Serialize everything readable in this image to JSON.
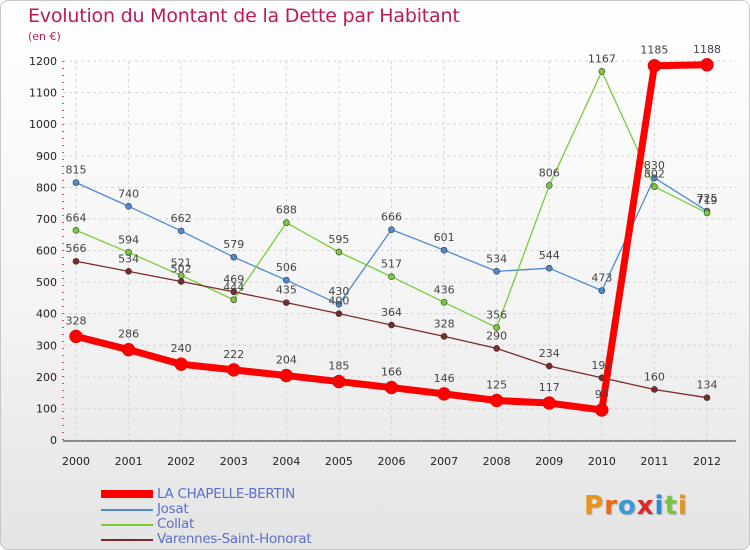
{
  "title": "Evolution du Montant de la Dette par Habitant",
  "unit_label": "(en €)",
  "logo": {
    "text": "Proxiti",
    "letters": [
      "P",
      "r",
      "o",
      "x",
      "i",
      "t",
      "i"
    ],
    "colors": [
      "#e8941a",
      "#e86a1a",
      "#3a9ad8",
      "#d82a2a",
      "#2a8ad8",
      "#7ac242",
      "#e8941a"
    ]
  },
  "chart_data": {
    "type": "line",
    "title": "Evolution du Montant de la Dette par Habitant",
    "ylabel": "(en €)",
    "xlabel": "",
    "x": [
      "2000",
      "2001",
      "2002",
      "2003",
      "2004",
      "2005",
      "2006",
      "2007",
      "2008",
      "2009",
      "2010",
      "2011",
      "2012"
    ],
    "yticks": [
      0,
      100,
      200,
      300,
      400,
      500,
      600,
      700,
      800,
      900,
      1000,
      1100,
      1200
    ],
    "ylim": [
      0,
      1200
    ],
    "grid": true,
    "legend_position": "bottom-left",
    "series": [
      {
        "name": "LA CHAPELLE-BERTIN",
        "color": "#ff0000",
        "values": [
          328,
          286,
          240,
          222,
          204,
          185,
          166,
          146,
          125,
          117,
          95,
          1185,
          1188
        ],
        "width": 7,
        "marker": 6.5
      },
      {
        "name": "Josat",
        "color": "#4e8ad0",
        "values": [
          815,
          740,
          662,
          579,
          506,
          430,
          666,
          601,
          534,
          544,
          473,
          830,
          725
        ],
        "width": 1.3,
        "marker": 3
      },
      {
        "name": "Collat",
        "color": "#7acb3a",
        "values": [
          664,
          594,
          521,
          444,
          688,
          595,
          517,
          436,
          356,
          806,
          1167,
          802,
          719
        ],
        "width": 1.3,
        "marker": 3
      },
      {
        "name": "Varennes-Saint-Honorat",
        "color": "#7a2a2a",
        "values": [
          566,
          534,
          502,
          469,
          435,
          400,
          364,
          328,
          290,
          234,
          197,
          160,
          134
        ],
        "width": 1.3,
        "marker": 3
      }
    ]
  }
}
